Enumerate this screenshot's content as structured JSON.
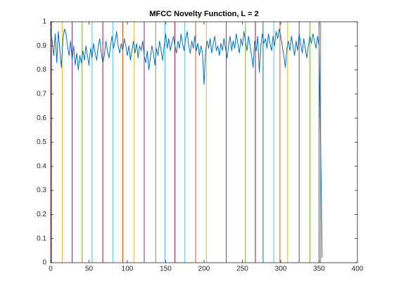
{
  "chart_data": {
    "type": "line",
    "title": "MFCC Novelty Function, L = 2",
    "xlim": [
      0,
      400
    ],
    "xticks": [
      0,
      50,
      100,
      150,
      200,
      250,
      300,
      350,
      400
    ],
    "ylim": [
      0,
      1
    ],
    "yticks": [
      0,
      0.1,
      0.2,
      0.3,
      0.4,
      0.5,
      0.6,
      0.7,
      0.8,
      0.9,
      1
    ],
    "x": [
      0,
      2,
      4,
      6,
      8,
      10,
      12,
      14,
      16,
      18,
      20,
      22,
      24,
      26,
      28,
      30,
      32,
      34,
      36,
      38,
      40,
      42,
      44,
      46,
      48,
      50,
      52,
      54,
      56,
      58,
      60,
      62,
      64,
      66,
      68,
      70,
      72,
      74,
      76,
      78,
      80,
      82,
      84,
      86,
      88,
      90,
      92,
      94,
      96,
      98,
      100,
      102,
      104,
      106,
      108,
      110,
      112,
      114,
      116,
      118,
      120,
      122,
      124,
      126,
      128,
      130,
      132,
      134,
      136,
      138,
      140,
      142,
      144,
      146,
      148,
      150,
      152,
      154,
      156,
      158,
      160,
      162,
      164,
      166,
      168,
      170,
      172,
      174,
      176,
      178,
      180,
      182,
      184,
      186,
      188,
      190,
      192,
      194,
      196,
      198,
      200,
      202,
      204,
      206,
      208,
      210,
      212,
      214,
      216,
      218,
      220,
      222,
      224,
      226,
      228,
      230,
      232,
      234,
      236,
      238,
      240,
      242,
      244,
      246,
      248,
      250,
      252,
      254,
      256,
      258,
      260,
      262,
      264,
      266,
      268,
      270,
      272,
      274,
      276,
      278,
      280,
      282,
      284,
      286,
      288,
      290,
      292,
      294,
      296,
      298,
      300,
      302,
      304,
      306,
      308,
      310,
      312,
      314,
      316,
      318,
      320,
      322,
      324,
      326,
      328,
      330,
      332,
      334,
      336,
      338,
      340,
      342,
      344,
      346,
      348,
      350,
      352,
      354
    ],
    "series": [
      {
        "color": "#0072BD",
        "values": [
          0.97,
          0.92,
          0.86,
          0.95,
          0.83,
          0.96,
          0.88,
          0.81,
          0.93,
          0.97,
          0.95,
          0.9,
          0.86,
          0.92,
          0.84,
          0.9,
          0.82,
          0.87,
          0.8,
          0.86,
          0.83,
          0.88,
          0.84,
          0.9,
          0.86,
          0.82,
          0.89,
          0.85,
          0.91,
          0.87,
          0.84,
          0.9,
          0.93,
          0.87,
          0.83,
          0.86,
          0.92,
          0.88,
          0.85,
          0.9,
          0.94,
          0.89,
          0.92,
          0.96,
          0.9,
          0.87,
          0.91,
          0.88,
          0.93,
          0.9,
          0.86,
          0.9,
          0.84,
          0.88,
          0.92,
          0.87,
          0.91,
          0.85,
          0.9,
          0.88,
          0.92,
          0.86,
          0.83,
          0.88,
          0.8,
          0.85,
          0.9,
          0.87,
          0.82,
          0.89,
          0.86,
          0.92,
          0.88,
          0.84,
          0.9,
          0.95,
          0.89,
          0.93,
          0.88,
          0.91,
          0.94,
          0.9,
          0.87,
          0.92,
          0.89,
          0.95,
          0.91,
          0.88,
          0.93,
          0.96,
          0.9,
          0.87,
          0.92,
          0.89,
          0.94,
          0.88,
          0.91,
          0.86,
          0.9,
          0.87,
          0.74,
          0.88,
          0.92,
          0.89,
          0.93,
          0.87,
          0.91,
          0.94,
          0.88,
          0.9,
          0.86,
          0.91,
          0.88,
          0.93,
          0.89,
          0.85,
          0.9,
          0.94,
          0.88,
          0.92,
          0.89,
          0.95,
          0.91,
          0.87,
          0.93,
          0.9,
          0.96,
          0.92,
          0.88,
          0.94,
          0.9,
          0.86,
          0.81,
          0.92,
          0.88,
          0.94,
          0.79,
          0.9,
          0.95,
          0.91,
          0.93,
          0.89,
          0.95,
          0.91,
          0.88,
          0.94,
          0.9,
          0.96,
          0.93,
          0.97,
          0.94,
          0.9,
          0.86,
          0.81,
          0.89,
          0.92,
          0.88,
          0.94,
          0.9,
          0.86,
          0.92,
          0.88,
          0.95,
          0.91,
          0.87,
          0.93,
          0.89,
          0.85,
          0.9,
          0.94,
          0.91,
          0.95,
          0.92,
          0.89,
          0.94,
          0.9,
          0.5,
          0.02
        ]
      }
    ],
    "vlines": [
      {
        "x": 1,
        "color": "#A2142F"
      },
      {
        "x": 15,
        "color": "#EDB120"
      },
      {
        "x": 28,
        "color": "#7E2F8E"
      },
      {
        "x": 41,
        "color": "#77AC30"
      },
      {
        "x": 54,
        "color": "#4DBEEE"
      },
      {
        "x": 68,
        "color": "#A2142F"
      },
      {
        "x": 81,
        "color": "#4DBEEE"
      },
      {
        "x": 94,
        "color": "#D95319"
      },
      {
        "x": 109,
        "color": "#EDB120"
      },
      {
        "x": 122,
        "color": "#7E2F8E"
      },
      {
        "x": 137,
        "color": "#77AC30"
      },
      {
        "x": 149,
        "color": "#4DBEEE"
      },
      {
        "x": 162,
        "color": "#A2142F"
      },
      {
        "x": 175,
        "color": "#4DBEEE"
      },
      {
        "x": 189,
        "color": "#D95319"
      },
      {
        "x": 203,
        "color": "#EDB120"
      },
      {
        "x": 229,
        "color": "#7E2F8E"
      },
      {
        "x": 254,
        "color": "#77AC30"
      },
      {
        "x": 267,
        "color": "#A2142F"
      },
      {
        "x": 277,
        "color": "#0072BD"
      },
      {
        "x": 291,
        "color": "#4DBEEE"
      },
      {
        "x": 299,
        "color": "#D95319"
      },
      {
        "x": 309,
        "color": "#EDB120"
      },
      {
        "x": 324,
        "color": "#7E2F8E"
      },
      {
        "x": 338,
        "color": "#77AC30"
      },
      {
        "x": 350,
        "color": "#0072BD"
      },
      {
        "x": 352,
        "color": "#D95319"
      }
    ]
  }
}
